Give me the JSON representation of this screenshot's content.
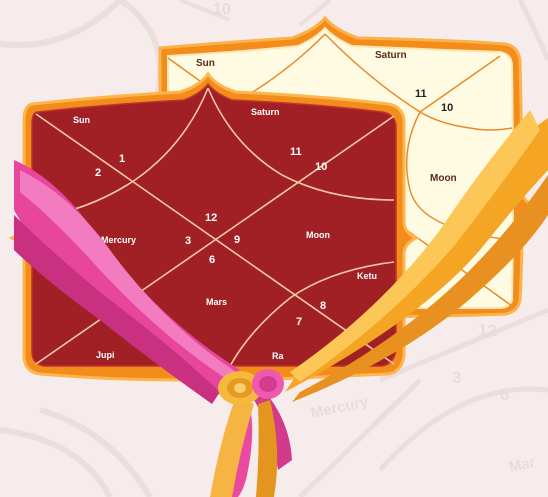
{
  "background_chart": {
    "planets": {
      "top_right": "10",
      "bottom_left_planet": "Mercury",
      "bottom_right_planet": "Mar"
    },
    "numbers": [
      "12",
      "3",
      "6"
    ]
  },
  "back_chart": {
    "planets": {
      "sun": "Sun",
      "saturn": "Saturn",
      "moon": "Moon"
    },
    "numbers": {
      "n11": "11",
      "n10": "10"
    }
  },
  "front_chart": {
    "planets": {
      "sun": "Sun",
      "saturn": "Saturn",
      "mercury": "Mercury",
      "moon": "Moon",
      "mars": "Mars",
      "ketu": "Ketu",
      "jupiter": "Jupi",
      "rahu": "Ra"
    },
    "numbers": {
      "n1": "1",
      "n2": "2",
      "n11": "11",
      "n10": "10",
      "n12": "12",
      "n3": "3",
      "n9": "9",
      "n6": "6",
      "n8": "8",
      "n7": "7"
    }
  },
  "colors": {
    "background": "#f6ecec",
    "chart_red": "#a02025",
    "chart_border": "#f28c1a",
    "back_chart_fill": "#fffbe3",
    "ribbon_pink": "#ec4fa3",
    "ribbon_orange": "#f4b02e"
  }
}
